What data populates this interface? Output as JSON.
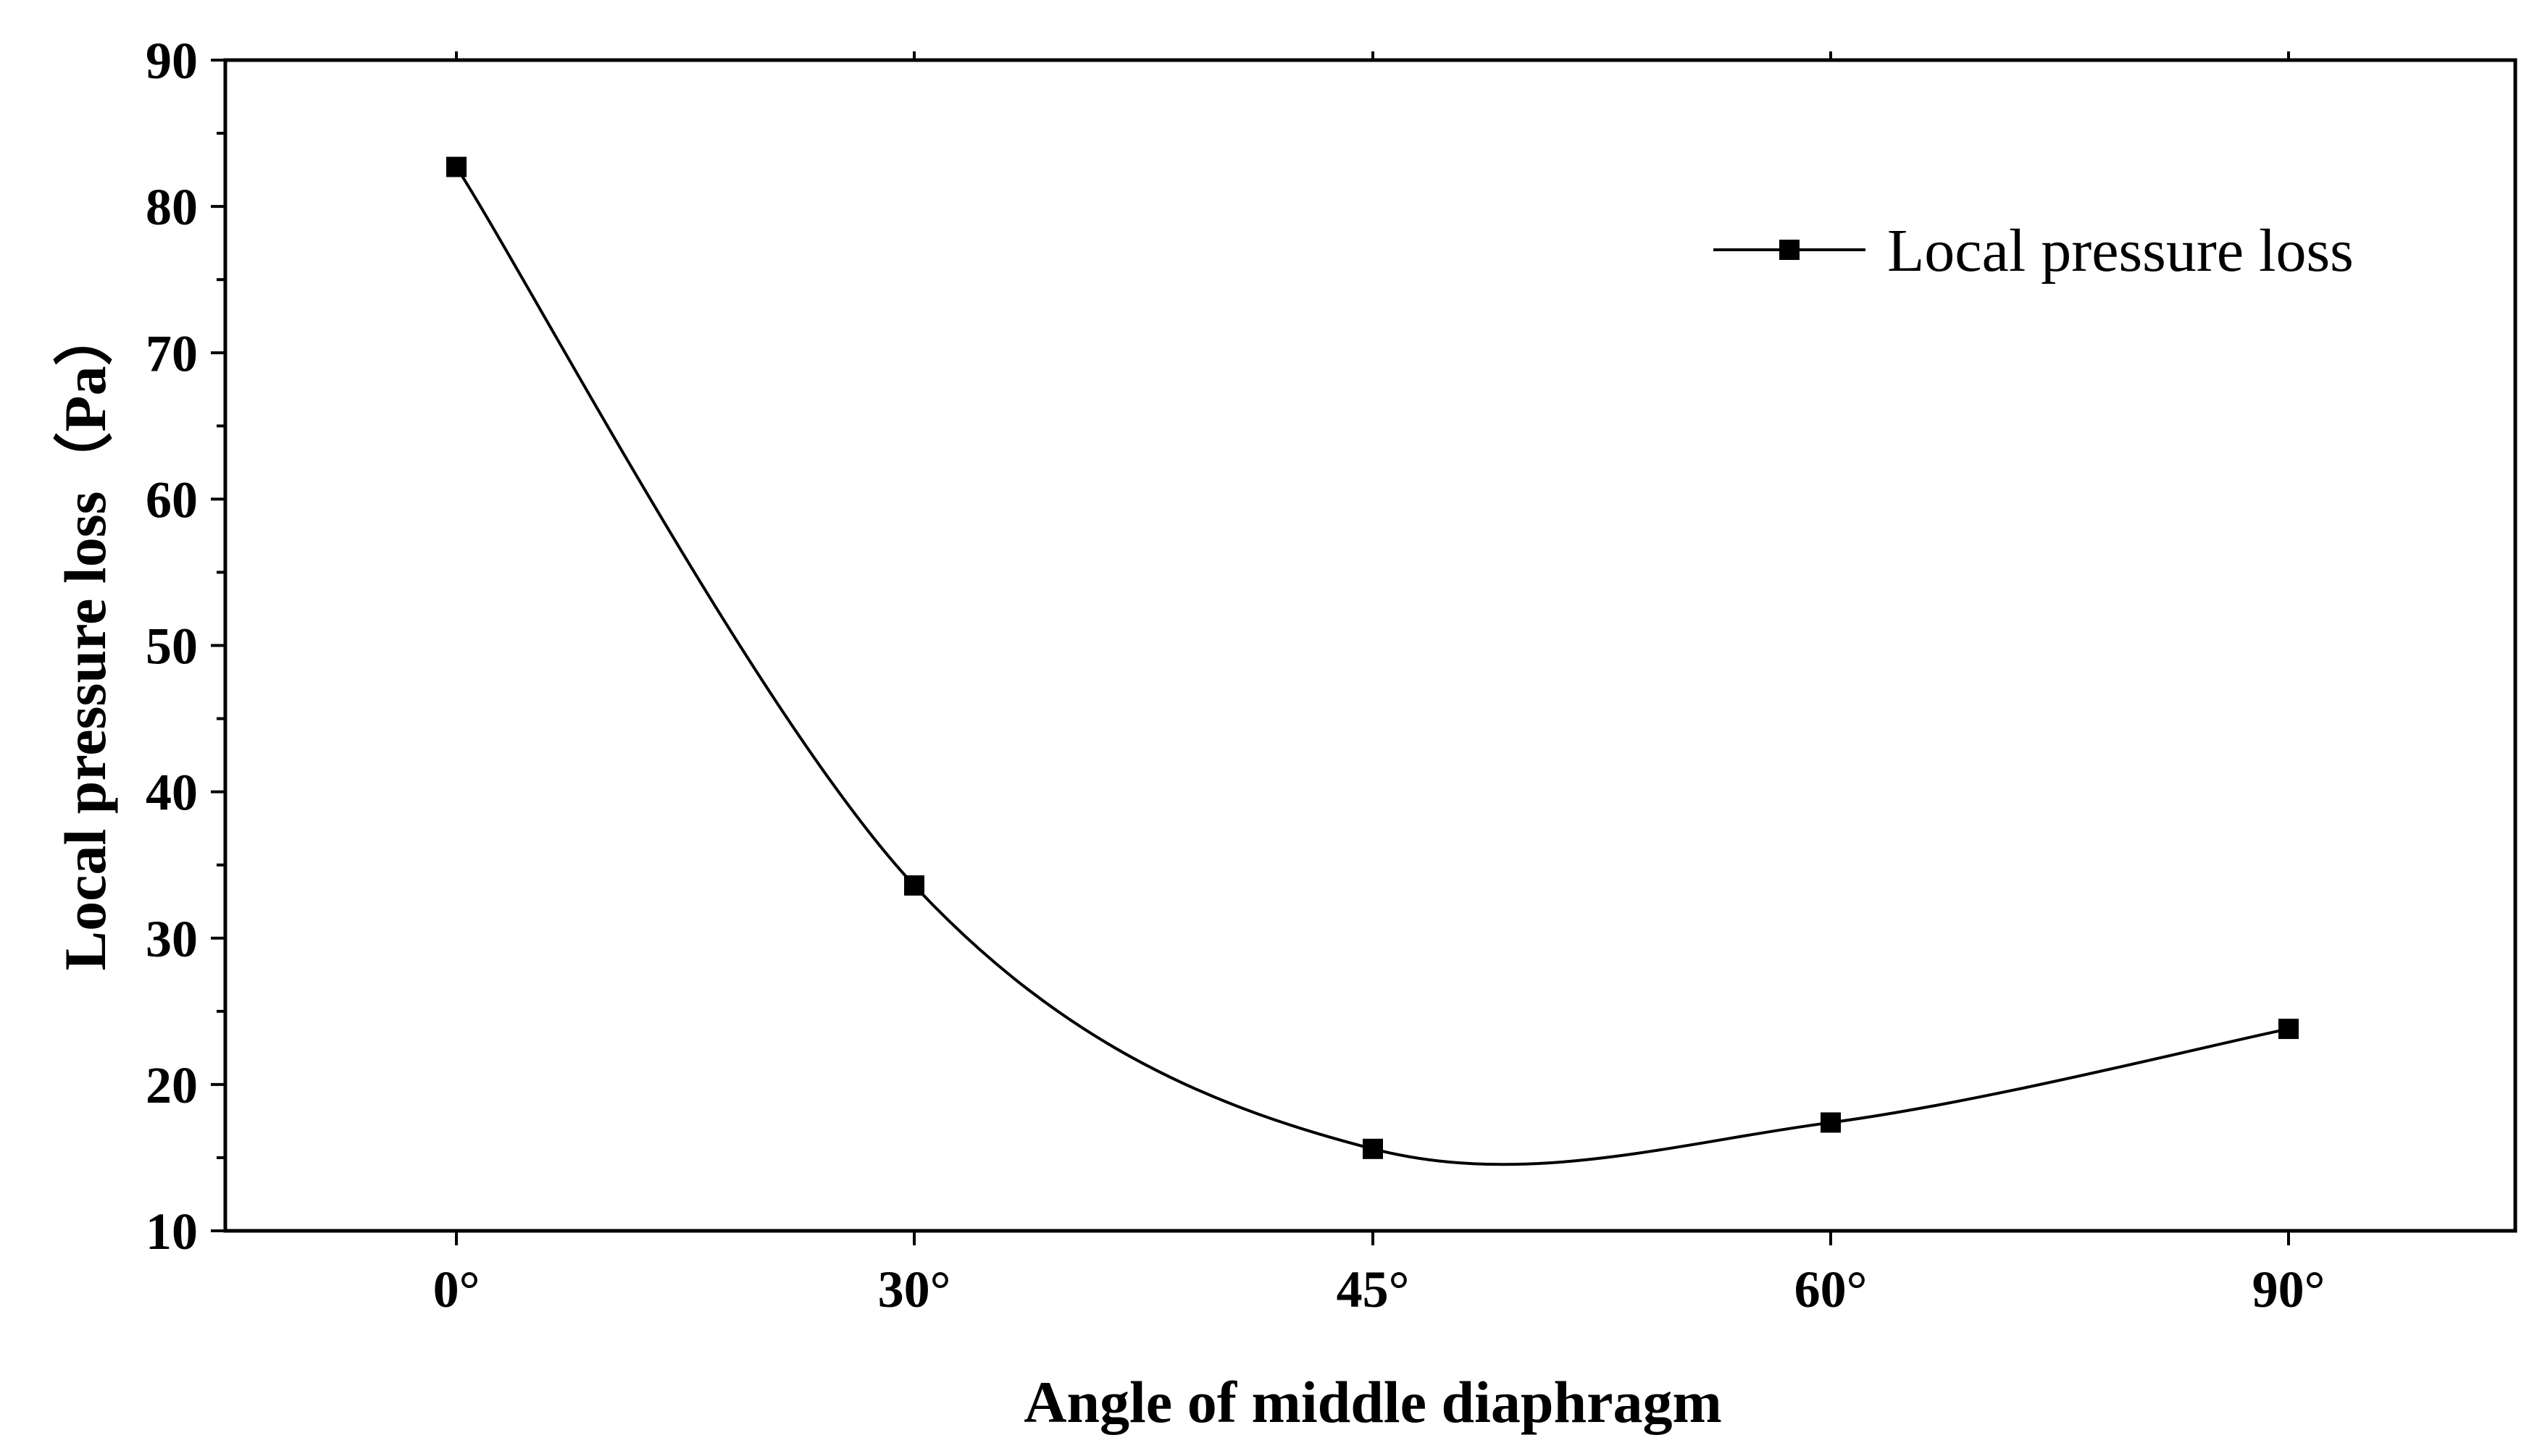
{
  "chart_data": {
    "type": "line",
    "categories": [
      "0°",
      "30°",
      "45°",
      "60°",
      "90°"
    ],
    "series": [
      {
        "name": "Local pressure loss",
        "values": [
          82.7,
          33.6,
          15.6,
          17.4,
          23.8
        ],
        "color": "#000000",
        "marker": "square",
        "line": "smooth"
      }
    ],
    "xlabel": "Angle of middle diaphragm",
    "ylabel": "Local pressure loss（Pa）",
    "ylim": [
      10,
      90
    ],
    "yticks": [
      "10",
      "20",
      "30",
      "40",
      "50",
      "60",
      "70",
      "80",
      "90"
    ],
    "grid": false,
    "legend_position": "top-right"
  }
}
